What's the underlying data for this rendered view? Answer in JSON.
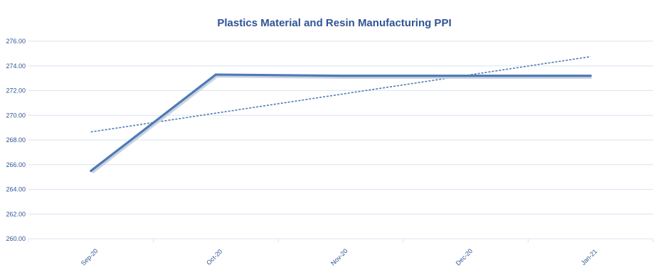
{
  "chart_data": {
    "type": "line",
    "title": "Plastics Material and Resin Manufacturing PPI",
    "categories": [
      "Sep-20",
      "Oct-20",
      "Nov-20",
      "Dec-20",
      "Jan-21"
    ],
    "series": [
      {
        "values": [
          265.5,
          273.3,
          273.2,
          273.2,
          273.2
        ]
      }
    ],
    "trendline": {
      "type": "linear",
      "values": [
        268.65,
        270.17,
        271.7,
        273.22,
        274.75
      ]
    },
    "yticks": [
      "260.00",
      "262.00",
      "264.00",
      "266.00",
      "268.00",
      "270.00",
      "272.00",
      "274.00",
      "276.00"
    ],
    "ylim": [
      260,
      276
    ],
    "grid": true,
    "colors": {
      "line": "#4f7ab6",
      "trend": "#4f7ab6",
      "grid": "#d9e4f2",
      "text": "#2f5496"
    }
  }
}
